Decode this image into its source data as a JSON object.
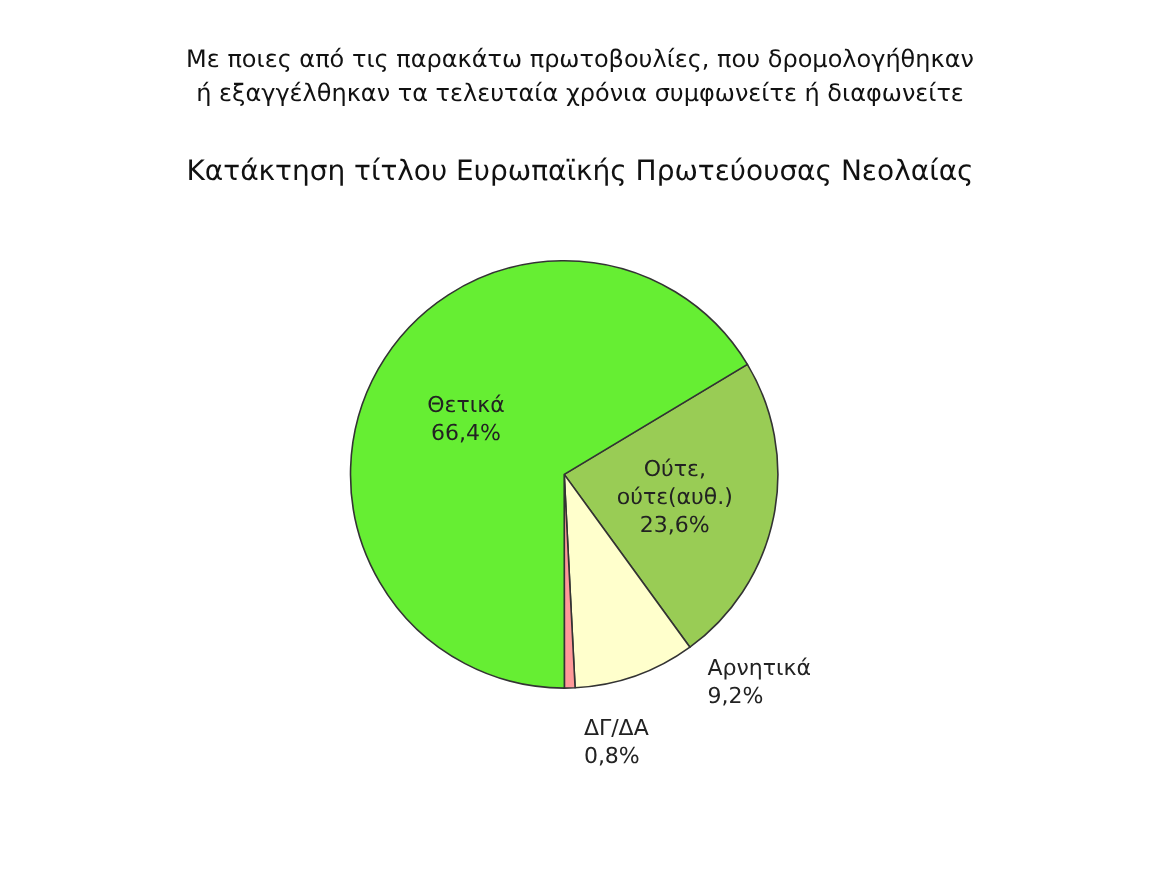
{
  "chart_data": {
    "type": "pie",
    "title": "Με ποιες από τις παρακάτω πρωτοβουλίες, που δρομολογήθηκαν\nή εξαγγέλθηκαν τα τελευταία χρόνια συμφωνείτε ή διαφωνείτε",
    "subtitle": "Κατάκτηση τίτλου Ευρωπαϊκής Πρωτεύουσας Νεολαίας",
    "categories": [
      "Ούτε, ούτε(αυθ.)",
      "Αρνητικά",
      "ΔΓ/ΔΑ",
      "Θετικά"
    ],
    "values": [
      23.6,
      9.2,
      0.8,
      66.4
    ],
    "colors": [
      "#99cc55",
      "#ffffcc",
      "#ff9999",
      "#66ee33"
    ],
    "value_labels": [
      "23,6%",
      "9,2%",
      "0,8%",
      "66,4%"
    ],
    "legend": false
  }
}
